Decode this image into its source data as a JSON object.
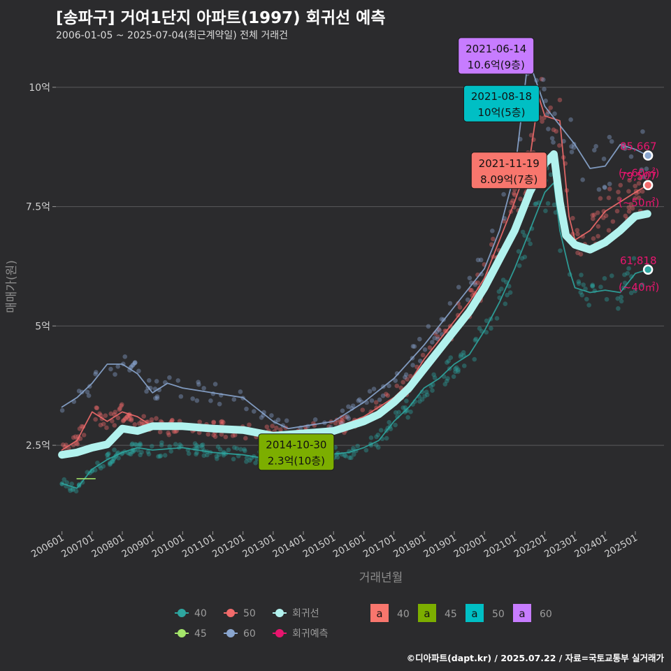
{
  "title": "[송파구] 거여1단지 아파트(1997) 회귀선 예측",
  "subtitle": "2006-01-05 ~ 2025-07-04(최근계약일) 전체 거래건",
  "credit": "©디아파트(dapt.kr) / 2025.07.22 / 자료=국토교통부 실거래가",
  "colors": {
    "s40": "#2ea6a0",
    "s45": "#a4e56a",
    "s50": "#f26b6b",
    "s60": "#8aa6cf",
    "regression": "#b2f2ee",
    "forecast": "#e8156e",
    "label40": "#f8766d",
    "label45": "#7cae00",
    "label50": "#00bfc4",
    "label60": "#c77cff"
  },
  "chart_data": {
    "type": "line",
    "xlabel": "거래년월",
    "ylabel": "매매가(원)",
    "x_range": [
      2005.8,
      2025.95
    ],
    "y_range": [
      0.7,
      10.95
    ],
    "grid": true,
    "x_ticks": [
      "200601",
      "200701",
      "200801",
      "200901",
      "201001",
      "201101",
      "201201",
      "201301",
      "201401",
      "201501",
      "201601",
      "201701",
      "201801",
      "201901",
      "202001",
      "202101",
      "202201",
      "202301",
      "202401",
      "202501"
    ],
    "y_ticks": [
      {
        "value": 2.5,
        "label": "2.5억"
      },
      {
        "value": 5,
        "label": "5억"
      },
      {
        "value": 7.5,
        "label": "7.5억"
      },
      {
        "value": 10,
        "label": "10억"
      }
    ],
    "series": [
      {
        "name": "40",
        "key": "s40",
        "points": [
          [
            2006.0,
            1.7
          ],
          [
            2006.5,
            1.6
          ],
          [
            2007.0,
            2.0
          ],
          [
            2007.5,
            2.2
          ],
          [
            2008.0,
            2.35
          ],
          [
            2008.5,
            2.45
          ],
          [
            2009.0,
            2.4
          ],
          [
            2010.0,
            2.45
          ],
          [
            2011.0,
            2.35
          ],
          [
            2012.0,
            2.3
          ],
          [
            2013.0,
            2.2
          ],
          [
            2014.0,
            2.25
          ],
          [
            2014.8,
            2.3
          ],
          [
            2015.5,
            2.35
          ],
          [
            2016.0,
            2.45
          ],
          [
            2016.5,
            2.6
          ],
          [
            2017.0,
            3.0
          ],
          [
            2017.5,
            3.3
          ],
          [
            2018.0,
            3.7
          ],
          [
            2018.5,
            3.9
          ],
          [
            2019.0,
            4.2
          ],
          [
            2019.5,
            4.4
          ],
          [
            2020.0,
            4.9
          ],
          [
            2020.5,
            5.5
          ],
          [
            2021.0,
            6.2
          ],
          [
            2021.5,
            7.0
          ],
          [
            2022.0,
            7.8
          ],
          [
            2022.3,
            8.0
          ],
          [
            2022.5,
            7.0
          ],
          [
            2022.8,
            6.2
          ],
          [
            2023.0,
            5.8
          ],
          [
            2023.5,
            5.7
          ],
          [
            2024.0,
            5.75
          ],
          [
            2024.5,
            5.7
          ],
          [
            2025.0,
            6.1
          ],
          [
            2025.4,
            6.18
          ]
        ]
      },
      {
        "name": "50",
        "key": "s50",
        "points": [
          [
            2006.0,
            2.4
          ],
          [
            2006.5,
            2.6
          ],
          [
            2007.0,
            3.2
          ],
          [
            2007.5,
            3.0
          ],
          [
            2008.0,
            3.2
          ],
          [
            2008.5,
            3.1
          ],
          [
            2009.0,
            2.9
          ],
          [
            2010.0,
            2.85
          ],
          [
            2011.0,
            2.85
          ],
          [
            2012.0,
            2.8
          ],
          [
            2013.0,
            2.75
          ],
          [
            2014.0,
            2.8
          ],
          [
            2015.0,
            2.85
          ],
          [
            2016.0,
            3.1
          ],
          [
            2016.5,
            3.3
          ],
          [
            2017.0,
            3.5
          ],
          [
            2017.5,
            3.8
          ],
          [
            2018.0,
            4.3
          ],
          [
            2018.5,
            4.7
          ],
          [
            2019.0,
            5.1
          ],
          [
            2019.5,
            5.5
          ],
          [
            2020.0,
            6.0
          ],
          [
            2020.5,
            6.8
          ],
          [
            2021.0,
            7.6
          ],
          [
            2021.5,
            8.5
          ],
          [
            2021.8,
            9.8
          ],
          [
            2022.0,
            9.4
          ],
          [
            2022.5,
            9.3
          ],
          [
            2022.8,
            7.3
          ],
          [
            2023.0,
            6.8
          ],
          [
            2023.5,
            7.0
          ],
          [
            2024.0,
            7.4
          ],
          [
            2024.5,
            7.6
          ],
          [
            2025.0,
            7.8
          ],
          [
            2025.4,
            7.95
          ]
        ]
      },
      {
        "name": "60",
        "key": "s60",
        "points": [
          [
            2006.0,
            3.3
          ],
          [
            2006.5,
            3.5
          ],
          [
            2007.0,
            3.8
          ],
          [
            2007.5,
            4.2
          ],
          [
            2008.0,
            4.2
          ],
          [
            2008.5,
            4.0
          ],
          [
            2009.0,
            3.6
          ],
          [
            2009.5,
            3.8
          ],
          [
            2010.0,
            3.7
          ],
          [
            2011.0,
            3.6
          ],
          [
            2012.0,
            3.5
          ],
          [
            2013.0,
            3.0
          ],
          [
            2013.5,
            2.85
          ],
          [
            2014.0,
            2.9
          ],
          [
            2015.0,
            3.0
          ],
          [
            2016.0,
            3.4
          ],
          [
            2017.0,
            3.9
          ],
          [
            2018.0,
            4.6
          ],
          [
            2019.0,
            5.4
          ],
          [
            2020.0,
            6.2
          ],
          [
            2020.5,
            7.0
          ],
          [
            2021.0,
            8.2
          ],
          [
            2021.45,
            10.6
          ],
          [
            2022.0,
            9.6
          ],
          [
            2023.0,
            8.8
          ],
          [
            2023.5,
            8.3
          ],
          [
            2024.0,
            8.35
          ],
          [
            2024.5,
            8.8
          ],
          [
            2025.0,
            8.7
          ],
          [
            2025.4,
            8.57
          ]
        ]
      },
      {
        "name": "45",
        "key": "s45",
        "points": [
          [
            2006.5,
            1.8
          ],
          [
            2007.1,
            1.8
          ]
        ]
      },
      {
        "name": "회귀선",
        "key": "regression",
        "points": [
          [
            2006.0,
            2.3
          ],
          [
            2006.5,
            2.35
          ],
          [
            2007.0,
            2.45
          ],
          [
            2007.5,
            2.52
          ],
          [
            2008.0,
            2.85
          ],
          [
            2008.5,
            2.8
          ],
          [
            2009.0,
            2.9
          ],
          [
            2010.0,
            2.9
          ],
          [
            2011.0,
            2.85
          ],
          [
            2012.0,
            2.82
          ],
          [
            2013.0,
            2.7
          ],
          [
            2014.0,
            2.75
          ],
          [
            2015.0,
            2.8
          ],
          [
            2016.0,
            3.0
          ],
          [
            2016.5,
            3.15
          ],
          [
            2017.0,
            3.4
          ],
          [
            2017.5,
            3.7
          ],
          [
            2018.0,
            4.1
          ],
          [
            2018.5,
            4.5
          ],
          [
            2019.0,
            4.9
          ],
          [
            2019.5,
            5.3
          ],
          [
            2020.0,
            5.8
          ],
          [
            2020.5,
            6.4
          ],
          [
            2021.0,
            7.0
          ],
          [
            2021.5,
            7.8
          ],
          [
            2022.0,
            8.4
          ],
          [
            2022.3,
            8.6
          ],
          [
            2022.5,
            7.6
          ],
          [
            2022.7,
            6.9
          ],
          [
            2023.0,
            6.7
          ],
          [
            2023.5,
            6.6
          ],
          [
            2024.0,
            6.75
          ],
          [
            2024.5,
            7.0
          ],
          [
            2025.0,
            7.3
          ],
          [
            2025.4,
            7.35
          ]
        ]
      }
    ],
    "labels": [
      {
        "date": "2021-06-14",
        "price": "10.6억(9층)",
        "x": 2021.45,
        "y": 10.6,
        "key": "label60"
      },
      {
        "date": "2021-08-18",
        "price": "10억(5층)",
        "x": 2021.63,
        "y": 9.6,
        "key": "label50"
      },
      {
        "date": "2021-11-19",
        "price": "8.09억(7층)",
        "x": 2021.88,
        "y": 8.2,
        "key": "label40"
      },
      {
        "date": "2014-10-30",
        "price": "2.3억(10층)",
        "x": 2014.83,
        "y": 2.3,
        "key": "label45"
      }
    ],
    "forecasts": [
      {
        "value": "85,667",
        "area": "(~60㎡)",
        "y": 8.57,
        "key": "s60"
      },
      {
        "value": "79,507",
        "area": "(~50㎡)",
        "y": 7.95,
        "key": "s50"
      },
      {
        "value": "61,818",
        "area": "(~40㎡)",
        "y": 6.18,
        "key": "s40"
      }
    ],
    "legend_position": "bottom",
    "legend_series": [
      {
        "name": "40",
        "key": "s40"
      },
      {
        "name": "45",
        "key": "s45"
      },
      {
        "name": "50",
        "key": "s50"
      },
      {
        "name": "60",
        "key": "s60"
      },
      {
        "name": "회귀선",
        "key": "regression"
      },
      {
        "name": "회귀예측",
        "key": "forecast"
      }
    ],
    "legend_labels": [
      {
        "glyph": "a",
        "name": "40",
        "key": "label40"
      },
      {
        "glyph": "a",
        "name": "45",
        "key": "label45"
      },
      {
        "glyph": "a",
        "name": "50",
        "key": "label50"
      },
      {
        "glyph": "a",
        "name": "60",
        "key": "label60"
      }
    ]
  }
}
